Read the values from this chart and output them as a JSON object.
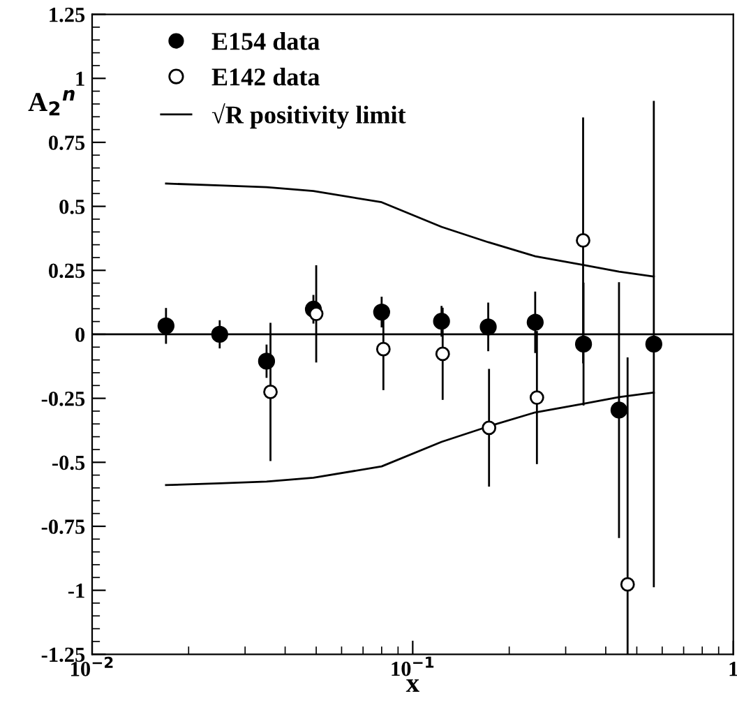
{
  "chart_data": {
    "type": "scatter",
    "xlabel": "x",
    "ylabel": "A$_{2}$$^{n}$",
    "log": "x",
    "xlim": [
      0.01,
      1
    ],
    "ylim": [
      -1.25,
      1.25
    ],
    "xticks": [
      {
        "value": 0.01,
        "label": "10$^{−2}$"
      },
      {
        "value": 0.1,
        "label": "10$^{−1}$"
      },
      1
    ],
    "yticks": [
      {
        "value": -1.25,
        "label": "-1.25"
      },
      -1,
      {
        "value": -0.75,
        "label": "-0.75"
      },
      {
        "value": -0.5,
        "label": "-0.5"
      },
      {
        "value": -0.25,
        "label": "-0.25"
      },
      0,
      {
        "value": 0.25,
        "label": "0.25"
      },
      {
        "value": 0.5,
        "label": "0.5"
      },
      {
        "value": 0.75,
        "label": "0.75"
      },
      1,
      {
        "value": 1.25,
        "label": "1.25"
      }
    ],
    "grid": false,
    "legend": "top left",
    "marker": "circle",
    "ref_lines": [
      {
        "axis": "y",
        "value": 0,
        "color": "#000000"
      }
    ],
    "series": [
      {
        "name": "E154 data",
        "color": "#000000",
        "x": [
          0.017,
          0.025,
          0.035,
          0.049,
          0.08,
          0.123,
          0.172,
          0.241,
          0.341,
          0.44,
          0.565
        ],
        "values": [
          0.033,
          0,
          -0.105,
          0.098,
          0.087,
          0.051,
          0.029,
          0.047,
          -0.038,
          -0.296,
          -0.038
        ],
        "errors": [
          0.07,
          0.055,
          0.065,
          0.056,
          0.06,
          0.06,
          0.095,
          0.12,
          0.24,
          0.5,
          0.95
        ]
      },
      {
        "name": "E142 data",
        "color": "#ffffff",
        "x": [
          0.036,
          0.05,
          0.081,
          0.124,
          0.173,
          0.244,
          0.34,
          0.468
        ],
        "values": [
          -0.225,
          0.08,
          -0.058,
          -0.076,
          -0.365,
          -0.247,
          0.367,
          -0.977
        ],
        "errors": [
          0.27,
          0.19,
          0.16,
          0.18,
          0.23,
          0.26,
          0.48,
          [
            -1.25,
            -0.09
          ]
        ]
      },
      {
        "name": "√R positivity limit",
        "type": "line",
        "color": "#000000",
        "marker": "none",
        "x": [
          0.017,
          0.025,
          0.035,
          0.049,
          0.08,
          0.123,
          0.172,
          0.241,
          0.341,
          0.44,
          0.565
        ],
        "values": [
          0.589,
          0.582,
          0.575,
          0.56,
          0.516,
          0.42,
          0.36,
          0.305,
          0.271,
          0.245,
          0.226
        ]
      },
      {
        "type": "line",
        "color": "#000000",
        "marker": "none",
        "x": [
          0.017,
          0.025,
          0.035,
          0.049,
          0.08,
          0.123,
          0.172,
          0.241,
          0.341,
          0.44,
          0.565
        ],
        "values": [
          -0.589,
          -0.582,
          -0.575,
          -0.56,
          -0.516,
          -0.42,
          -0.36,
          -0.305,
          -0.271,
          -0.245,
          -0.227
        ]
      }
    ]
  }
}
